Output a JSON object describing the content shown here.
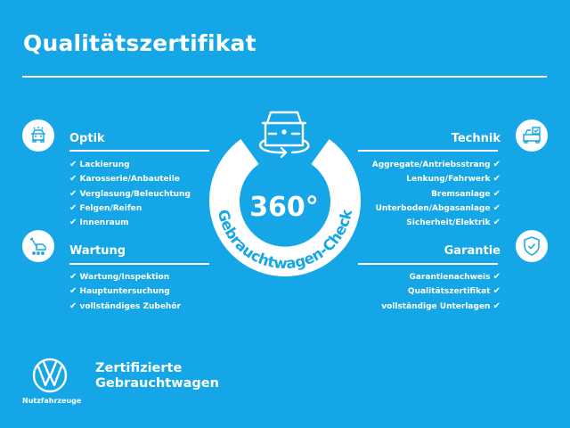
{
  "title": "Qualitätszertifikat",
  "colors": {
    "background": "#14a6e6",
    "foreground": "#ffffff"
  },
  "check_glyph": "✔",
  "sections": {
    "optik": {
      "heading": "Optik",
      "icon": "car-front-icon",
      "items": [
        "Lackierung",
        "Karosserie/Anbauteile",
        "Verglasung/Beleuchtung",
        "Felgen/Reifen",
        "Innenraum"
      ]
    },
    "wartung": {
      "heading": "Wartung",
      "icon": "service-tools-icon",
      "items": [
        "Wartung/Inspektion",
        "Hauptuntersuchung",
        "vollständiges Zubehör"
      ]
    },
    "technik": {
      "heading": "Technik",
      "icon": "car-checklist-icon",
      "items": [
        "Aggregate/Antriebsstrang",
        "Lenkung/Fahrwerk",
        "Bremsanlage",
        "Unterboden/Abgasanlage",
        "Sicherheit/Elektrik"
      ]
    },
    "garantie": {
      "heading": "Garantie",
      "icon": "shield-check-icon",
      "items": [
        "Garantienachweis",
        "Qualitätszertifikat",
        "vollständige Unterlagen"
      ]
    }
  },
  "badge": {
    "value": "360°",
    "arc_text": "Gebrauchtwagen-Check",
    "icon": "car-rotate-icon"
  },
  "brand": {
    "logo": "VW",
    "sub": "Nutzfahrzeuge",
    "line1": "Zertifizierte",
    "line2": "Gebrauchtwagen"
  }
}
